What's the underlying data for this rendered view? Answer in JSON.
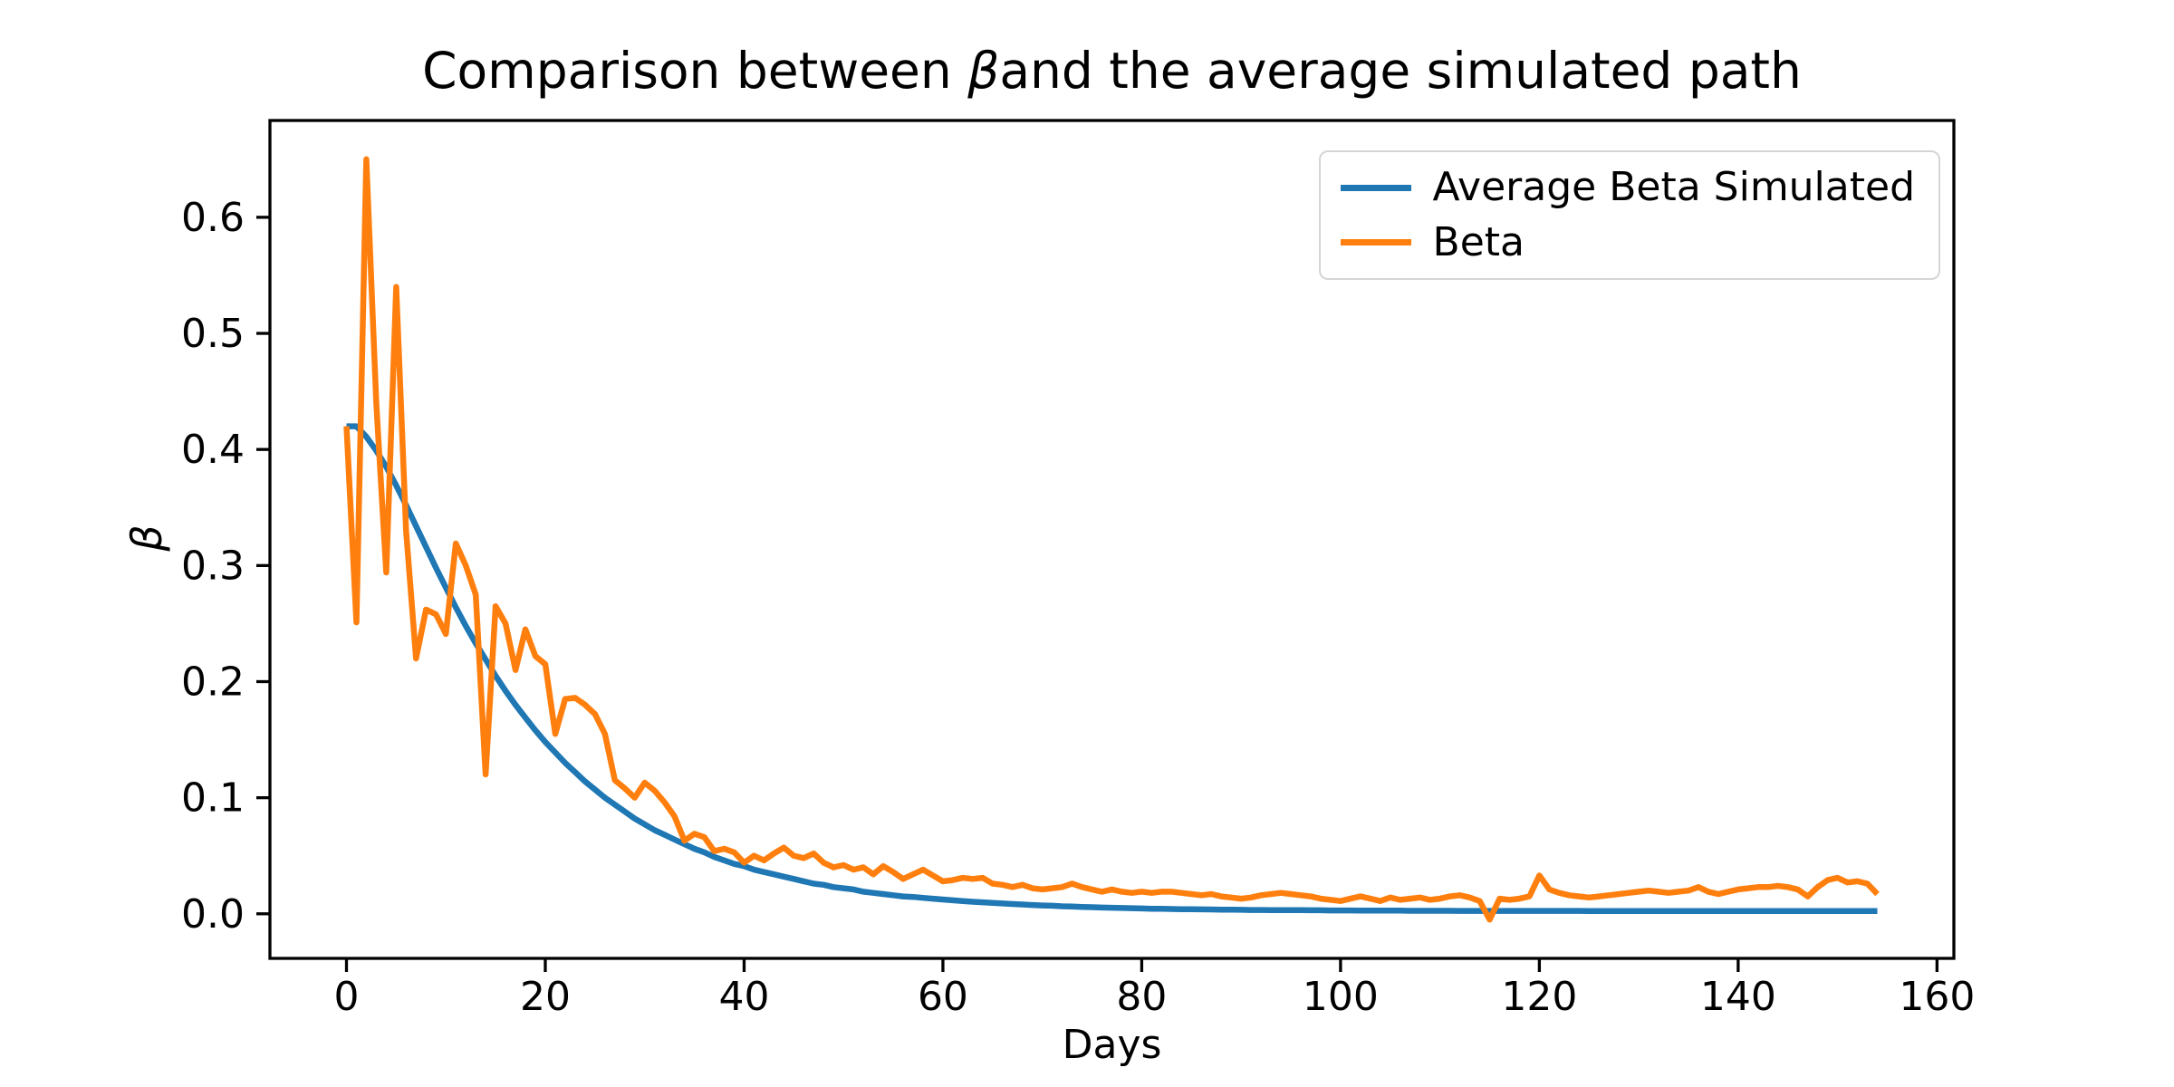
{
  "figure": {
    "background": "#ffffff",
    "title": {
      "prefix": "Comparison between ",
      "beta": "β",
      "suffix": "and the average simulated path"
    }
  },
  "legend": {
    "position": "upper-right",
    "items": [
      {
        "label": "Average Beta Simulated",
        "color": "#1f77b4"
      },
      {
        "label": "Beta",
        "color": "#ff7f0e"
      }
    ]
  },
  "chart_data": {
    "type": "line",
    "title": "Comparison between βand the average simulated path",
    "xlabel": "Days",
    "ylabel": "β",
    "grid": false,
    "legend_position": "upper right",
    "axis_color": "#000000",
    "text_color": "#000000",
    "xlim": [
      -7.7,
      161.7
    ],
    "ylim": [
      -0.0384,
      0.6834
    ],
    "xticks": {
      "values": [
        0,
        20,
        40,
        60,
        80,
        100,
        120,
        140,
        160
      ],
      "labels": [
        "0",
        "20",
        "40",
        "60",
        "80",
        "100",
        "120",
        "140",
        "160"
      ]
    },
    "yticks": {
      "values": [
        0.0,
        0.1,
        0.2,
        0.3,
        0.4,
        0.5,
        0.6
      ],
      "labels": [
        "0.0",
        "0.1",
        "0.2",
        "0.3",
        "0.4",
        "0.5",
        "0.6"
      ]
    },
    "x_start": 0,
    "x_step": 1,
    "x_unit": "days",
    "series": [
      {
        "name": "Average Beta Simulated",
        "color": "#1f77b4",
        "values": [
          0.42,
          0.42,
          0.411,
          0.399,
          0.385,
          0.369,
          0.352,
          0.334,
          0.316,
          0.298,
          0.281,
          0.264,
          0.248,
          0.233,
          0.219,
          0.205,
          0.192,
          0.18,
          0.169,
          0.158,
          0.148,
          0.139,
          0.13,
          0.122,
          0.114,
          0.107,
          0.1,
          0.094,
          0.088,
          0.082,
          0.077,
          0.072,
          0.068,
          0.064,
          0.06,
          0.056,
          0.053,
          0.049,
          0.046,
          0.043,
          0.041,
          0.038,
          0.036,
          0.034,
          0.032,
          0.03,
          0.028,
          0.026,
          0.025,
          0.023,
          0.022,
          0.021,
          0.019,
          0.018,
          0.017,
          0.016,
          0.015,
          0.0145,
          0.0137,
          0.013,
          0.0123,
          0.0116,
          0.011,
          0.0104,
          0.0099,
          0.0094,
          0.0089,
          0.0084,
          0.008,
          0.0076,
          0.0072,
          0.0069,
          0.0065,
          0.0062,
          0.0059,
          0.0057,
          0.0054,
          0.0052,
          0.005,
          0.0048,
          0.0046,
          0.0044,
          0.0043,
          0.0041,
          0.004,
          0.0039,
          0.0038,
          0.0037,
          0.0036,
          0.0035,
          0.0034,
          0.0033,
          0.0033,
          0.0032,
          0.0032,
          0.0031,
          0.0031,
          0.003,
          0.003,
          0.0029,
          0.0029,
          0.0029,
          0.0028,
          0.0028,
          0.0027,
          0.0027,
          0.0027,
          0.0026,
          0.0026,
          0.0026,
          0.0026,
          0.0026,
          0.0025,
          0.0025,
          0.0025,
          0.0025,
          0.0025,
          0.0025,
          0.0025,
          0.0025,
          0.0025,
          0.0025,
          0.0025,
          0.0025,
          0.0025,
          0.0024,
          0.0024,
          0.0024,
          0.0024,
          0.0024,
          0.0024,
          0.0024,
          0.0024,
          0.0024,
          0.0024,
          0.0024,
          0.0024,
          0.0024,
          0.0024,
          0.0024,
          0.0024,
          0.0024,
          0.0024,
          0.0024,
          0.0024,
          0.0024,
          0.0024,
          0.0024,
          0.0024,
          0.0024,
          0.0024,
          0.0024,
          0.0024,
          0.0024,
          0.0024
        ]
      },
      {
        "name": "Beta",
        "color": "#ff7f0e",
        "values": [
          0.42,
          0.251,
          0.65,
          0.44,
          0.294,
          0.54,
          0.33,
          0.22,
          0.262,
          0.258,
          0.241,
          0.319,
          0.3,
          0.275,
          0.12,
          0.265,
          0.25,
          0.21,
          0.245,
          0.222,
          0.215,
          0.155,
          0.185,
          0.186,
          0.18,
          0.172,
          0.155,
          0.115,
          0.108,
          0.1,
          0.113,
          0.106,
          0.096,
          0.084,
          0.063,
          0.069,
          0.066,
          0.054,
          0.056,
          0.053,
          0.044,
          0.05,
          0.046,
          0.052,
          0.057,
          0.05,
          0.048,
          0.052,
          0.044,
          0.04,
          0.042,
          0.038,
          0.04,
          0.034,
          0.041,
          0.036,
          0.03,
          0.034,
          0.038,
          0.033,
          0.028,
          0.029,
          0.031,
          0.03,
          0.031,
          0.026,
          0.025,
          0.023,
          0.025,
          0.022,
          0.021,
          0.022,
          0.023,
          0.026,
          0.023,
          0.021,
          0.019,
          0.021,
          0.019,
          0.018,
          0.019,
          0.018,
          0.019,
          0.019,
          0.018,
          0.017,
          0.016,
          0.017,
          0.015,
          0.014,
          0.013,
          0.014,
          0.016,
          0.017,
          0.018,
          0.017,
          0.016,
          0.015,
          0.013,
          0.012,
          0.011,
          0.013,
          0.015,
          0.013,
          0.011,
          0.014,
          0.012,
          0.013,
          0.014,
          0.012,
          0.013,
          0.015,
          0.016,
          0.014,
          0.011,
          -0.005,
          0.013,
          0.012,
          0.013,
          0.015,
          0.033,
          0.021,
          0.018,
          0.016,
          0.015,
          0.014,
          0.015,
          0.016,
          0.017,
          0.018,
          0.019,
          0.02,
          0.019,
          0.018,
          0.019,
          0.02,
          0.023,
          0.019,
          0.017,
          0.019,
          0.021,
          0.022,
          0.023,
          0.023,
          0.024,
          0.023,
          0.021,
          0.015,
          0.023,
          0.029,
          0.031,
          0.027,
          0.028,
          0.026,
          0.017
        ]
      }
    ]
  }
}
